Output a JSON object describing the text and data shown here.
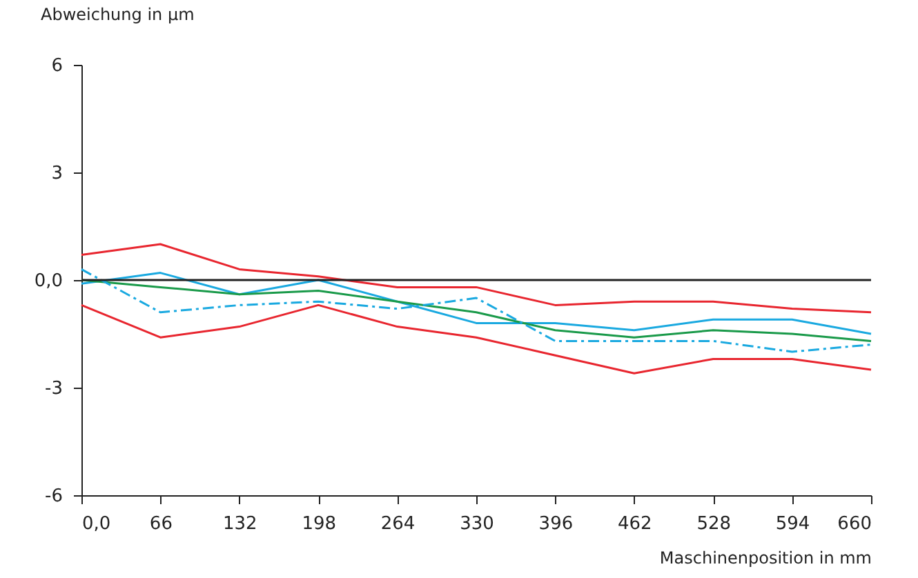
{
  "chart_data": {
    "type": "line",
    "xlabel": "Maschinenposition in mm",
    "ylabel": "Abweichung in µm",
    "x": [
      0,
      66,
      132,
      198,
      264,
      330,
      396,
      462,
      528,
      594,
      660
    ],
    "series": [
      {
        "color": "#e8262f",
        "line_style": "solid",
        "values": [
          0.7,
          1.0,
          0.3,
          0.1,
          -0.2,
          -0.2,
          -0.7,
          -0.6,
          -0.6,
          -0.8,
          -0.9
        ]
      },
      {
        "color": "#e8262f",
        "line_style": "solid",
        "values": [
          -0.7,
          -1.6,
          -1.3,
          -0.7,
          -1.3,
          -1.6,
          -2.1,
          -2.6,
          -2.2,
          -2.2,
          -2.5
        ]
      },
      {
        "color": "#1aa9e0",
        "line_style": "solid",
        "values": [
          -0.1,
          0.2,
          -0.4,
          0.0,
          -0.6,
          -1.2,
          -1.2,
          -1.4,
          -1.1,
          -1.1,
          -1.5
        ]
      },
      {
        "color": "#1a9a4a",
        "line_style": "solid",
        "values": [
          0.0,
          -0.2,
          -0.4,
          -0.3,
          -0.6,
          -0.9,
          -1.4,
          -1.6,
          -1.4,
          -1.5,
          -1.7
        ]
      },
      {
        "color": "#1aa9e0",
        "line_style": "dashed",
        "values": [
          0.3,
          -0.9,
          -0.7,
          -0.6,
          -0.8,
          -0.5,
          -1.7,
          -1.7,
          -1.7,
          -2.0,
          -1.8
        ]
      }
    ],
    "xlim": [
      0,
      660
    ],
    "xticks": [
      {
        "value": 0,
        "label": "0,0"
      },
      66,
      132,
      198,
      264,
      330,
      396,
      462,
      528,
      594,
      660
    ],
    "ylim": [
      -6,
      6
    ],
    "yticks": [
      -6,
      -3,
      {
        "value": 0,
        "label": "0,0"
      },
      3,
      6
    ],
    "ref_lines": [
      {
        "axis": "y",
        "value": 0,
        "color": "#222222"
      }
    ],
    "grid": false
  }
}
